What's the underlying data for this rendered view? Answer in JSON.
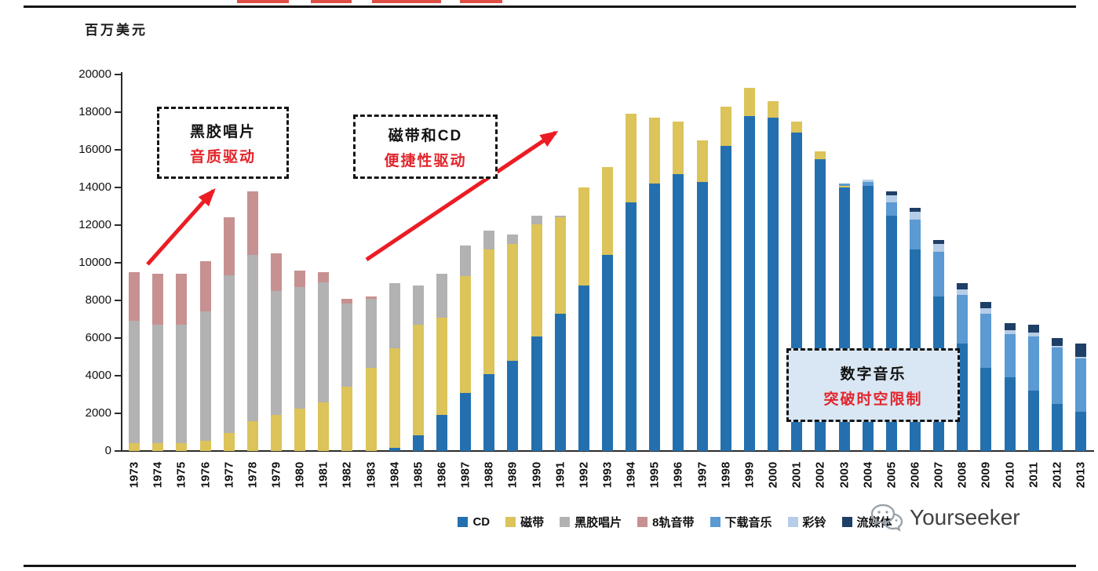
{
  "header": {
    "y_axis_title": "百万美元"
  },
  "annotations": {
    "vinyl": {
      "line1": "黑胶唱片",
      "line2": "音质驱动"
    },
    "cassette_cd": {
      "line1": "磁带和CD",
      "line2": "便捷性驱动"
    },
    "digital": {
      "line1": "数字音乐",
      "line2": "突破时空限制"
    }
  },
  "watermark": {
    "text": "Yourseeker",
    "icon": "wechat-icon"
  },
  "chart_data": {
    "type": "bar",
    "stacked": true,
    "title": "",
    "xlabel": "",
    "ylabel": "百万美元",
    "ylim": [
      0,
      20000
    ],
    "ytick_interval": 2000,
    "grid": false,
    "legend_position": "bottom",
    "accent_arrow_color": "#ec1c24",
    "categories": [
      1973,
      1974,
      1975,
      1976,
      1977,
      1978,
      1979,
      1980,
      1981,
      1982,
      1983,
      1984,
      1985,
      1986,
      1987,
      1988,
      1989,
      1990,
      1991,
      1992,
      1993,
      1994,
      1995,
      1996,
      1997,
      1998,
      1999,
      2000,
      2001,
      2002,
      2003,
      2004,
      2005,
      2006,
      2007,
      2008,
      2009,
      2010,
      2011,
      2012,
      2013
    ],
    "series": [
      {
        "name": "CD",
        "color": "#2470af",
        "values": [
          0,
          0,
          0,
          0,
          0,
          0,
          0,
          0,
          0,
          0,
          0,
          150,
          850,
          1900,
          3100,
          4100,
          4800,
          6100,
          7300,
          8800,
          10400,
          13200,
          14200,
          14700,
          14300,
          16200,
          17800,
          17700,
          16900,
          15500,
          14000,
          14100,
          12500,
          10700,
          8200,
          5700,
          4400,
          3900,
          3200,
          2500,
          2100
        ]
      },
      {
        "name": "磁带",
        "color": "#dcc35a",
        "values": [
          400,
          400,
          400,
          550,
          950,
          1600,
          1900,
          2250,
          2600,
          3400,
          4400,
          5300,
          5850,
          5200,
          6200,
          6600,
          6200,
          5950,
          5100,
          5200,
          4700,
          4700,
          3500,
          2800,
          2200,
          2100,
          1500,
          900,
          600,
          400,
          100,
          0,
          0,
          0,
          0,
          0,
          0,
          0,
          0,
          0,
          0
        ]
      },
      {
        "name": "黑胶唱片",
        "color": "#b2b2b2",
        "values": [
          6500,
          6300,
          6300,
          6850,
          8400,
          8800,
          6600,
          6450,
          6350,
          4450,
          3700,
          3450,
          2100,
          2300,
          1600,
          1000,
          500,
          450,
          100,
          0,
          0,
          0,
          0,
          0,
          0,
          0,
          0,
          0,
          0,
          0,
          0,
          0,
          0,
          0,
          0,
          0,
          0,
          0,
          0,
          0,
          0
        ]
      },
      {
        "name": "8轨音带",
        "color": "#c79191",
        "values": [
          2600,
          2700,
          2700,
          2700,
          3050,
          3400,
          2000,
          900,
          550,
          250,
          100,
          0,
          0,
          0,
          0,
          0,
          0,
          0,
          0,
          0,
          0,
          0,
          0,
          0,
          0,
          0,
          0,
          0,
          0,
          0,
          0,
          0,
          0,
          0,
          0,
          0,
          0,
          0,
          0,
          0,
          0
        ]
      },
      {
        "name": "下载音乐",
        "color": "#5b9ad2",
        "values": [
          0,
          0,
          0,
          0,
          0,
          0,
          0,
          0,
          0,
          0,
          0,
          0,
          0,
          0,
          0,
          0,
          0,
          0,
          0,
          0,
          0,
          0,
          0,
          0,
          0,
          0,
          0,
          0,
          0,
          0,
          100,
          200,
          700,
          1600,
          2400,
          2600,
          2900,
          2300,
          2900,
          3000,
          2800
        ]
      },
      {
        "name": "彩铃",
        "color": "#b5cde6",
        "values": [
          0,
          0,
          0,
          0,
          0,
          0,
          0,
          0,
          0,
          0,
          0,
          0,
          0,
          0,
          0,
          0,
          0,
          0,
          0,
          0,
          0,
          0,
          0,
          0,
          0,
          0,
          0,
          0,
          0,
          0,
          0,
          100,
          400,
          400,
          400,
          300,
          300,
          200,
          200,
          100,
          100
        ]
      },
      {
        "name": "流媒体",
        "color": "#1e3f66",
        "values": [
          0,
          0,
          0,
          0,
          0,
          0,
          0,
          0,
          0,
          0,
          0,
          0,
          0,
          0,
          0,
          0,
          0,
          0,
          0,
          0,
          0,
          0,
          0,
          0,
          0,
          0,
          0,
          0,
          0,
          0,
          0,
          0,
          200,
          200,
          200,
          300,
          300,
          400,
          400,
          400,
          700
        ]
      }
    ]
  }
}
